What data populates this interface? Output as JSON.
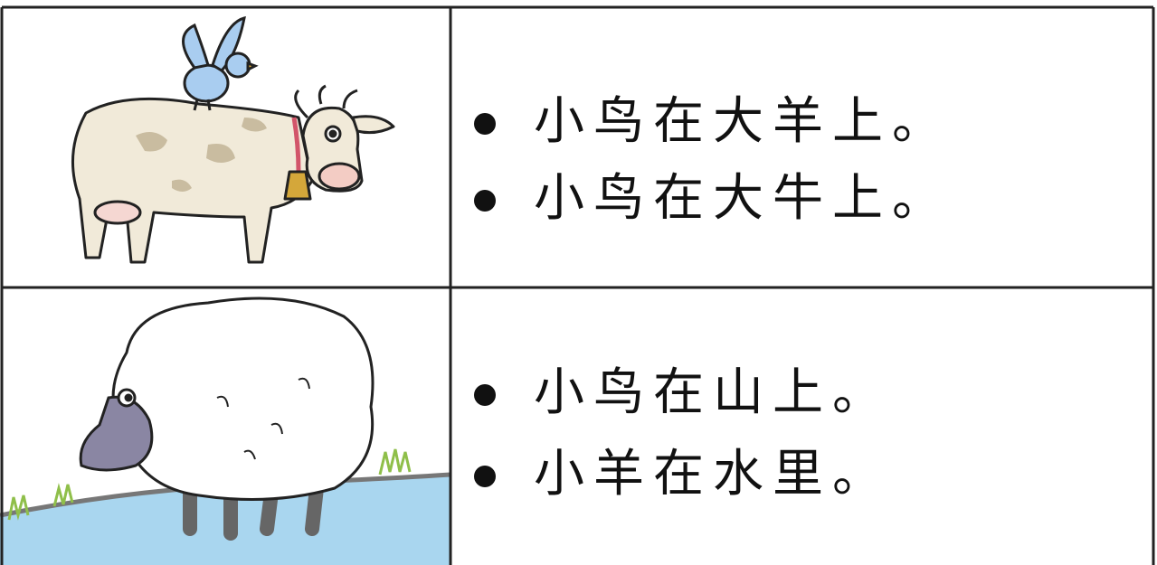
{
  "table": {
    "rows": [
      {
        "items": [
          "小鸟在大羊上。",
          "小鸟在大牛上。"
        ]
      },
      {
        "items": [
          "小鸟在山上。",
          "小羊在水里。"
        ]
      }
    ]
  }
}
